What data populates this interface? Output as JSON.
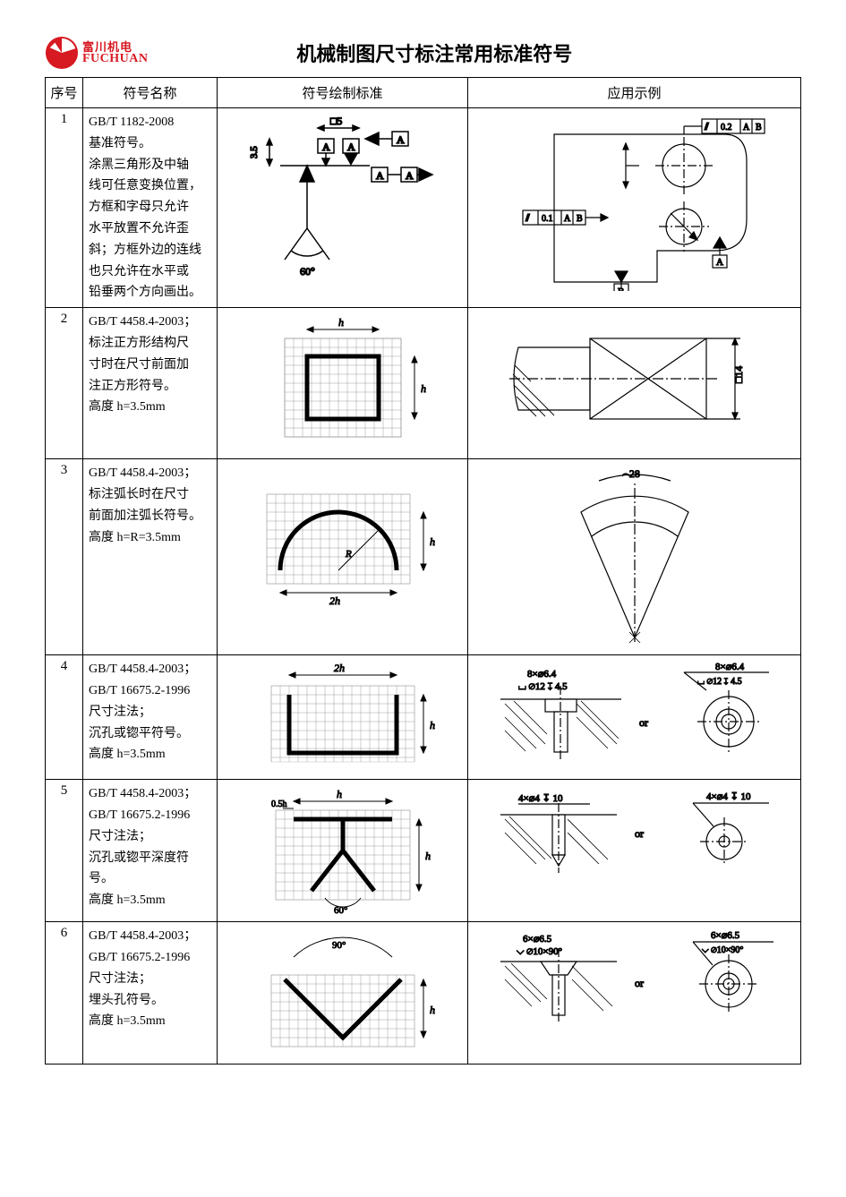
{
  "logo": {
    "cn": "富川机电",
    "en": "FUCHUAN",
    "color": "#d71921"
  },
  "title": "机械制图尺寸标注常用标准符号",
  "headers": {
    "num": "序号",
    "name": "符号名称",
    "std": "符号绘制标准",
    "ex": "应用示例"
  },
  "rows": [
    {
      "num": "1",
      "name_lines": [
        "<span class='gb'>GB/T 1182-2008</span>",
        "基准符号。",
        "涂黑三角形及中轴",
        "线可任意变换位置，",
        "方框和字母只允许",
        "水平放置不允许歪",
        "斜；方框外边的连线",
        "也只允许在水平或",
        "铅垂两个方向画出。"
      ],
      "std_labels": {
        "dim_v": "3.5",
        "dim_sq": "□5",
        "letter": "A",
        "angle": "60°"
      },
      "ex_labels": {
        "tol1": "0.2",
        "tol2": "0.1",
        "a": "A",
        "b": "B"
      }
    },
    {
      "num": "2",
      "name_lines": [
        "<span class='gb'>GB/T 4458.4-2003</span>；",
        "标注正方形结构尺",
        "寸时在尺寸前面加",
        "注正方形符号。",
        "高度 <span class='gb'>h=3.5mm</span>"
      ],
      "std_labels": {
        "h": "h"
      },
      "ex_labels": {
        "dim": "□14"
      }
    },
    {
      "num": "3",
      "name_lines": [
        "<span class='gb'>GB/T 4458.4-2003</span>；",
        "标注弧长时在尺寸",
        "前面加注弧长符号。",
        "高度 <span class='gb'>h=R=3.5mm</span>"
      ],
      "std_labels": {
        "w": "2h",
        "h": "h",
        "r": "R"
      },
      "ex_labels": {
        "dim": "⌢28"
      }
    },
    {
      "num": "4",
      "name_lines": [
        "<span class='gb'>GB/T 4458.4-2003</span>；",
        "<span class='gb'>GB/T 16675.2-1996</span>",
        "尺寸注法；",
        "沉孔或锪平符号。",
        "高度 <span class='gb'>h=3.5mm</span>"
      ],
      "std_labels": {
        "w": "2h",
        "h": "h"
      },
      "ex_labels": {
        "t1": "8×⌀6.4",
        "t2": "⌀12 ↧ 4.5",
        "or": "or"
      }
    },
    {
      "num": "5",
      "name_lines": [
        "<span class='gb'>GB/T 4458.4-2003</span>；",
        "<span class='gb'>GB/T 16675.2-1996</span>",
        "尺寸注法；",
        "沉孔或锪平深度符",
        "号。",
        "高度 <span class='gb'>h=3.5mm</span>"
      ],
      "std_labels": {
        "w": "h",
        "h": "h",
        "t": "0.5h",
        "angle": "60°"
      },
      "ex_labels": {
        "t1": "4×⌀4 ↧ 10",
        "or": "or"
      }
    },
    {
      "num": "6",
      "name_lines": [
        "<span class='gb'>GB/T 4458.4-2003</span>；",
        "<span class='gb'>GB/T 16675.2-1996</span>",
        "尺寸注法；",
        "埋头孔符号。",
        "高度 <span class='gb'>h=3.5mm</span>"
      ],
      "std_labels": {
        "angle": "90°",
        "h": "h"
      },
      "ex_labels": {
        "t1": "6×⌀6.5",
        "t2": "⌀10×90°",
        "or": "or"
      }
    }
  ],
  "colors": {
    "line": "#000000",
    "grid": "#707070",
    "hatch": "#000000"
  }
}
